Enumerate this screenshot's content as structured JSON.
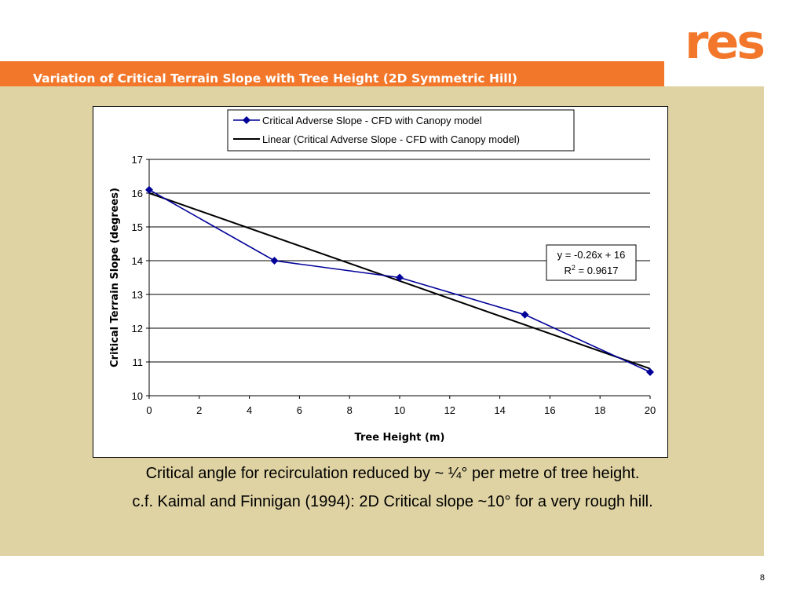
{
  "slide": {
    "brand": "res",
    "title": "Variation of Critical Terrain Slope with Tree Height (2D Symmetric Hill)",
    "caption_line1": "Critical angle for recirculation reduced by ~ ¼° per metre of tree height.",
    "caption_line2": "c.f. Kaimal and Finnigan (1994): 2D Critical slope ~10° for a very rough hill.",
    "page_number": "8"
  },
  "colors": {
    "title_bar": "#f2772a",
    "panel": "#dfd3a3",
    "series": "#000099",
    "trend": "#000000",
    "brand": "#f2772a"
  },
  "chart_data": {
    "type": "line",
    "xlabel": "Tree Height (m)",
    "ylabel": "Critical Terrain Slope (degrees)",
    "xlim": [
      0,
      20
    ],
    "ylim": [
      10,
      17
    ],
    "xticks": [
      "0",
      "2",
      "4",
      "6",
      "8",
      "10",
      "12",
      "14",
      "16",
      "18",
      "20"
    ],
    "yticks": [
      "10",
      "11",
      "12",
      "13",
      "14",
      "15",
      "16",
      "17"
    ],
    "grid": "horizontal",
    "legend_position": "top",
    "series": [
      {
        "name": "Critical Adverse Slope - CFD with Canopy model",
        "marker": "diamond",
        "x": [
          0,
          5,
          10,
          15,
          20
        ],
        "y": [
          16.1,
          14.0,
          13.5,
          12.4,
          10.7
        ]
      }
    ],
    "trendline": {
      "name": "Linear (Critical Adverse Slope - CFD with Canopy model)",
      "slope": -0.26,
      "intercept": 16,
      "x_range": [
        0,
        20
      ],
      "equation": "y = -0.26x + 16",
      "r2_prefix": "R",
      "r2_sup": "2",
      "r2_value": " = 0.9617"
    }
  }
}
